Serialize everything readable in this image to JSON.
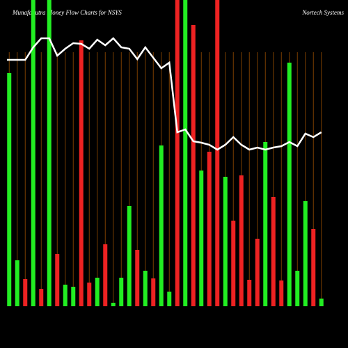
{
  "chart_data": {
    "type": "bar",
    "title": "MunafaSutra Money Flow Charts for NSYS",
    "subtitle": "Nortech Systems",
    "ylim": [
      0,
      440
    ],
    "grid": true,
    "grid_color": "#7a3e00",
    "series": [
      {
        "name": "Money Flow",
        "values": [
          335,
          66,
          39,
          440,
          25,
          440,
          75,
          31,
          28,
          382,
          34,
          41,
          89,
          5,
          41,
          144,
          81,
          51,
          40,
          231,
          21,
          440,
          440,
          404,
          195,
          222,
          440,
          186,
          123,
          188,
          38,
          97,
          236,
          157,
          37,
          350,
          51,
          151,
          111,
          11
        ],
        "colors": [
          "#22ee22",
          "#22ee22",
          "#ee2222",
          "#22ee22",
          "#ee2222",
          "#22ee22",
          "#ee2222",
          "#22ee22",
          "#22ee22",
          "#ee2222",
          "#ee2222",
          "#22ee22",
          "#ee2222",
          "#22ee22",
          "#22ee22",
          "#22ee22",
          "#ee2222",
          "#22ee22",
          "#ee2222",
          "#22ee22",
          "#22ee22",
          "#ee2222",
          "#22ee22",
          "#ee2222",
          "#22ee22",
          "#ee2222",
          "#ee2222",
          "#22ee22",
          "#ee2222",
          "#ee2222",
          "#ee2222",
          "#ee2222",
          "#22ee22",
          "#ee2222",
          "#ee2222",
          "#22ee22",
          "#22ee22",
          "#22ee22",
          "#ee2222",
          "#22ee22"
        ]
      },
      {
        "name": "Price",
        "type": "line",
        "color": "#ffffff",
        "values": [
          354,
          354,
          354,
          372,
          385,
          385,
          360,
          370,
          378,
          377,
          370,
          383,
          375,
          385,
          372,
          370,
          355,
          372,
          357,
          342,
          350,
          250,
          254,
          237,
          235,
          232,
          225,
          232,
          243,
          232,
          225,
          228,
          225,
          228,
          230,
          236,
          230,
          248,
          243,
          250
        ]
      }
    ]
  }
}
